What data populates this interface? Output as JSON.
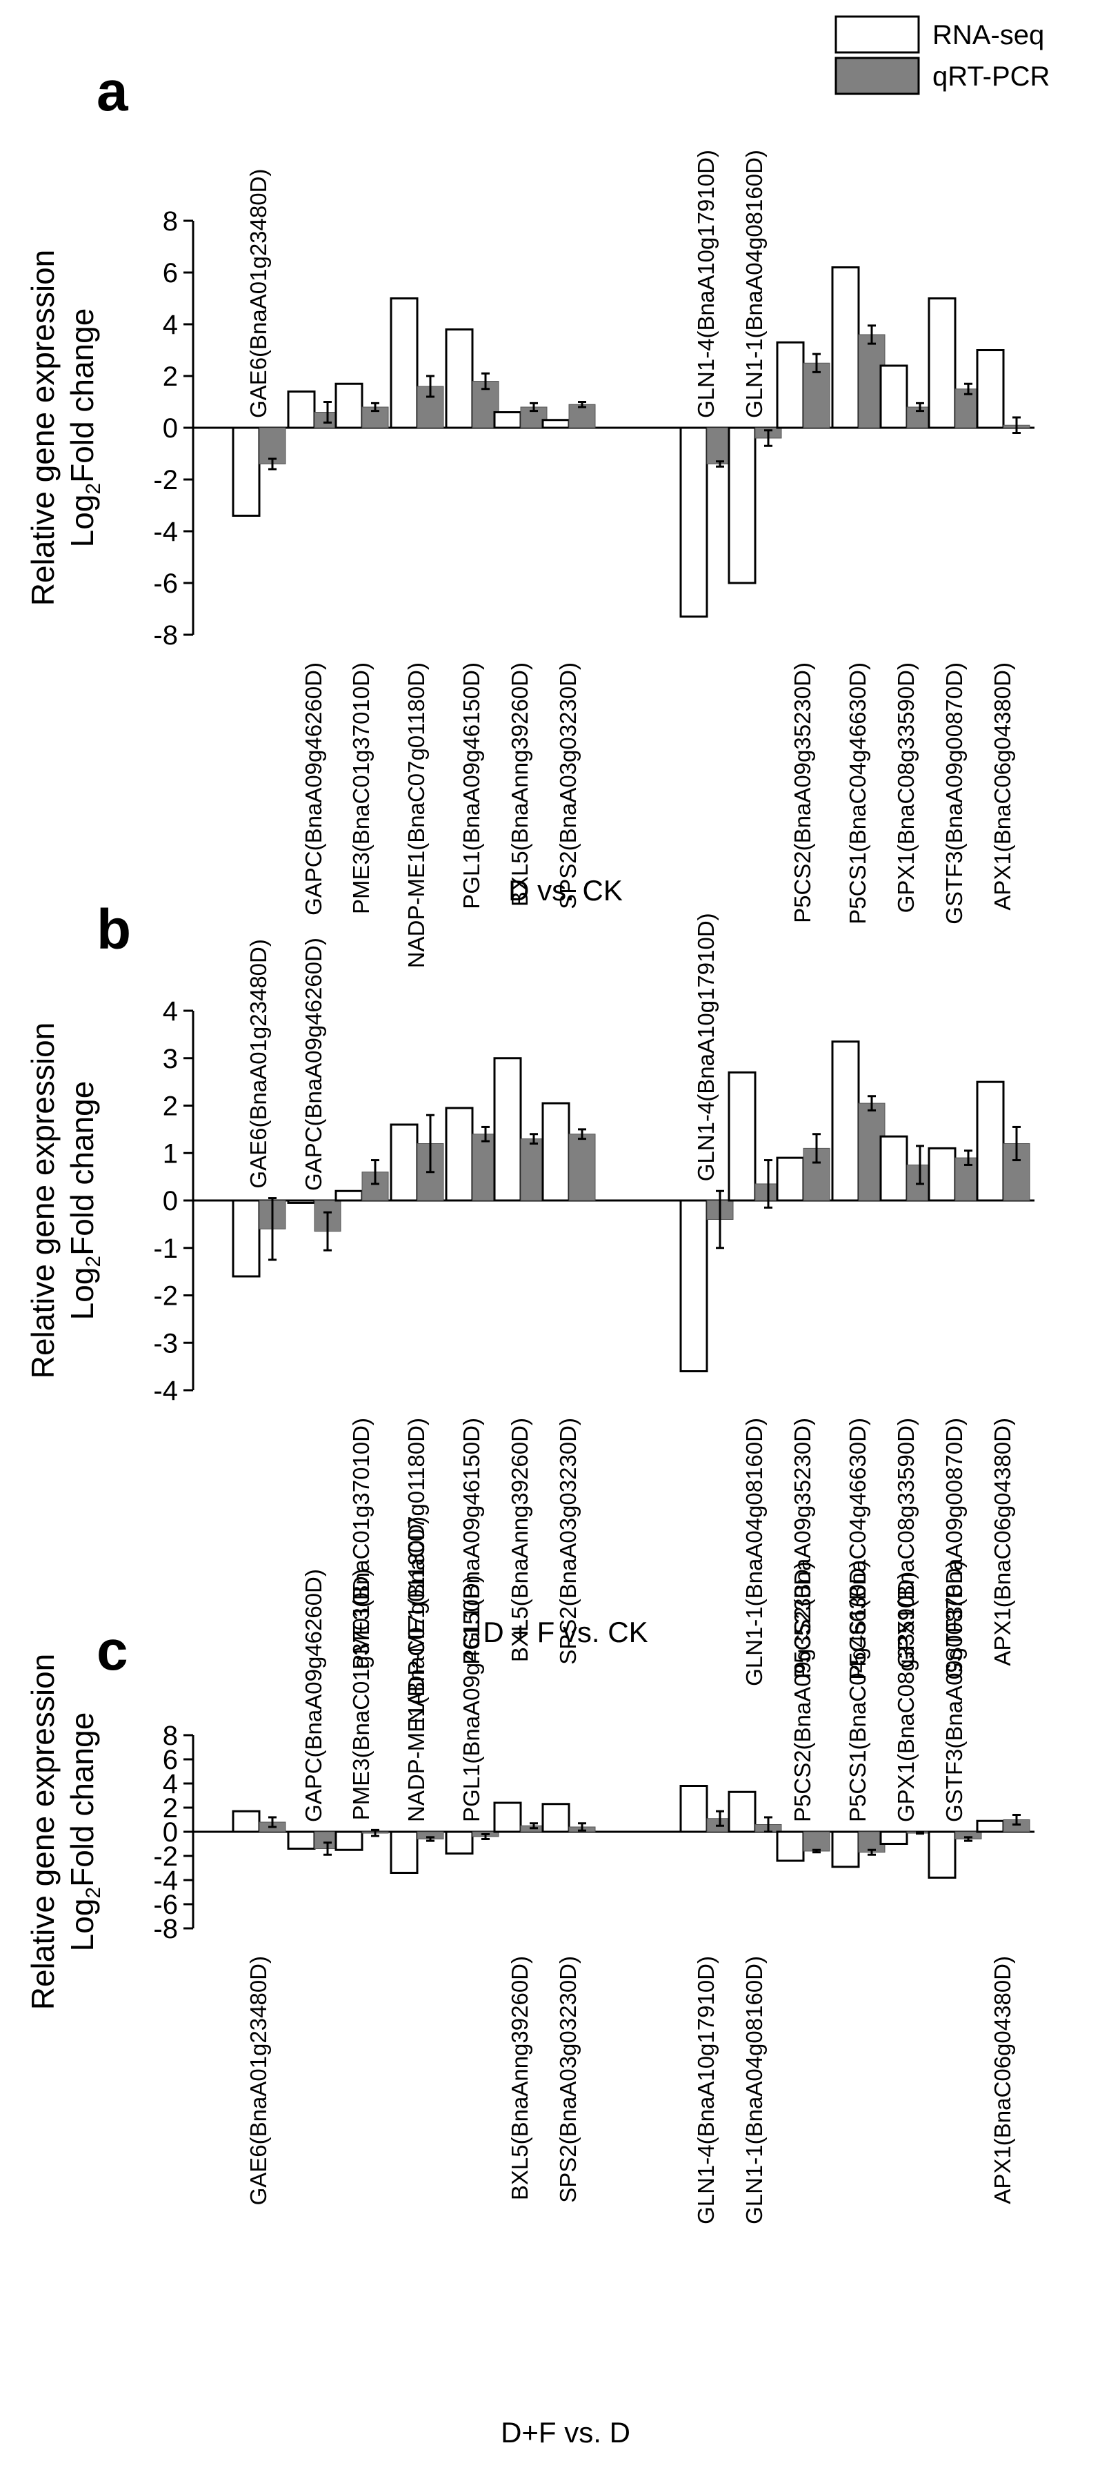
{
  "colors": {
    "rna_seq": "#ffffff",
    "qrt_pcr": "#808080",
    "axis": "#000000"
  },
  "legend": {
    "rna_seq": "RNA-seq",
    "qrt_pcr": "qRT-PCR"
  },
  "y_label": {
    "line1": "Relative gene expression",
    "line2_prefix": "Log",
    "line2_sub": "2",
    "line2_suffix": "Fold change"
  },
  "chart_data": [
    {
      "type": "bar",
      "panel": "a",
      "xlabel": "D vs. CK",
      "ylim": [
        -8,
        8
      ],
      "yticks": [
        8,
        6,
        4,
        2,
        0,
        -2,
        -4,
        -6,
        -8
      ],
      "categories": [
        "GAE6(BnaA01g23480D)",
        "GAPC(BnaA09g46260D)",
        "PME3(BnaC01g37010D)",
        "NADP-ME1(BnaC07g01180D)",
        "PGL1(BnaA09g46150D)",
        "BXL5(BnaAnng39260D)",
        "SPS2(BnaA03g03230D)",
        "GLN1-4(BnaA10g17910D)",
        "GLN1-1(BnaA04g08160D)",
        "P5CS2(BnaA09g35230D)",
        "P5CS1(BnaC04g46630D)",
        "GPX1(BnaC08g33590D)",
        "GSTF3(BnaA09g00870D)",
        "APX1(BnaC06g04380D)"
      ],
      "series": [
        {
          "name": "RNA-seq",
          "values": [
            -3.4,
            1.4,
            1.7,
            5.0,
            3.8,
            0.6,
            0.3,
            -7.3,
            -6.0,
            3.3,
            6.2,
            2.4,
            5.0,
            3.0
          ]
        },
        {
          "name": "qRT-PCR",
          "values": [
            -1.4,
            0.6,
            0.8,
            1.6,
            1.8,
            0.8,
            0.9,
            -1.4,
            -0.4,
            2.5,
            3.6,
            0.8,
            1.5,
            0.1
          ],
          "errors": [
            0.2,
            0.4,
            0.15,
            0.4,
            0.3,
            0.15,
            0.1,
            0.1,
            0.3,
            0.35,
            0.35,
            0.15,
            0.2,
            0.3
          ]
        }
      ]
    },
    {
      "type": "bar",
      "panel": "b",
      "xlabel": "D + F vs. CK",
      "ylim": [
        -4,
        4
      ],
      "yticks": [
        4,
        3,
        2,
        1,
        0,
        -1,
        -2,
        -3,
        -4
      ],
      "categories": [
        "GAE6(BnaA01g23480D)",
        "GAPC(BnaA09g46260D)",
        "PME3(BnaC01g37010D)",
        "NADP-ME1(BnaC07g01180D)",
        "PGL1(BnaA09g46150D)",
        "BXL5(BnaAnng39260D)",
        "SPS2(BnaA03g03230D)",
        "GLN1-4(BnaA10g17910D)",
        "GLN1-1(BnaA04g08160D)",
        "P5CS2(BnaA09g35230D)",
        "P5CS1(BnaC04g46630D)",
        "GPX1(BnaC08g33590D)",
        "GSTF3(BnaA09g00870D)",
        "APX1(BnaC06g04380D)"
      ],
      "series": [
        {
          "name": "RNA-seq",
          "values": [
            -1.6,
            -0.05,
            0.2,
            1.6,
            1.95,
            3.0,
            2.05,
            -3.6,
            2.7,
            0.9,
            3.35,
            1.35,
            1.1,
            2.5
          ]
        },
        {
          "name": "qRT-PCR",
          "values": [
            -0.6,
            -0.65,
            0.6,
            1.2,
            1.4,
            1.3,
            1.4,
            -0.4,
            0.35,
            1.1,
            2.05,
            0.75,
            0.9,
            1.2
          ],
          "errors": [
            0.65,
            0.4,
            0.25,
            0.6,
            0.15,
            0.1,
            0.1,
            0.6,
            0.5,
            0.3,
            0.15,
            0.4,
            0.15,
            0.35
          ]
        }
      ]
    },
    {
      "type": "bar",
      "panel": "c",
      "xlabel": "D+F vs. D",
      "ylim": [
        -8,
        8
      ],
      "yticks": [
        8,
        6,
        4,
        2,
        0,
        -2,
        -4,
        -6,
        -8
      ],
      "categories": [
        "GAE6(BnaA01g23480D)",
        "GAPC(BnaA09g46260D)",
        "PME3(BnaC01g37010D)",
        "NADP-ME1(BnaC07g01180D)",
        "PGL1(BnaA09g46150D)",
        "BXL5(BnaAnng39260D)",
        "SPS2(BnaA03g03230D)",
        "GLN1-4(BnaA10g17910D)",
        "GLN1-1(BnaA04g08160D)",
        "P5CS2(BnaA09g35230D)",
        "P5CS1(BnaC04g46630D)",
        "GPX1(BnaC08g33590D)",
        "GSTF3(BnaA09g00870D)",
        "APX1(BnaC06g04380D)"
      ],
      "series": [
        {
          "name": "RNA-seq",
          "values": [
            1.7,
            -1.4,
            -1.5,
            -3.4,
            -1.8,
            2.4,
            2.3,
            3.8,
            3.3,
            -2.4,
            -2.9,
            -1.0,
            -3.8,
            0.9
          ]
        },
        {
          "name": "qRT-PCR",
          "values": [
            0.8,
            -1.4,
            -0.1,
            -0.6,
            -0.4,
            0.5,
            0.4,
            1.1,
            0.6,
            -1.6,
            -1.7,
            -0.1,
            -0.6,
            1.0
          ],
          "errors": [
            0.4,
            0.5,
            0.25,
            0.15,
            0.2,
            0.2,
            0.3,
            0.6,
            0.6,
            0.1,
            0.2,
            0.05,
            0.15,
            0.4
          ]
        }
      ]
    }
  ]
}
